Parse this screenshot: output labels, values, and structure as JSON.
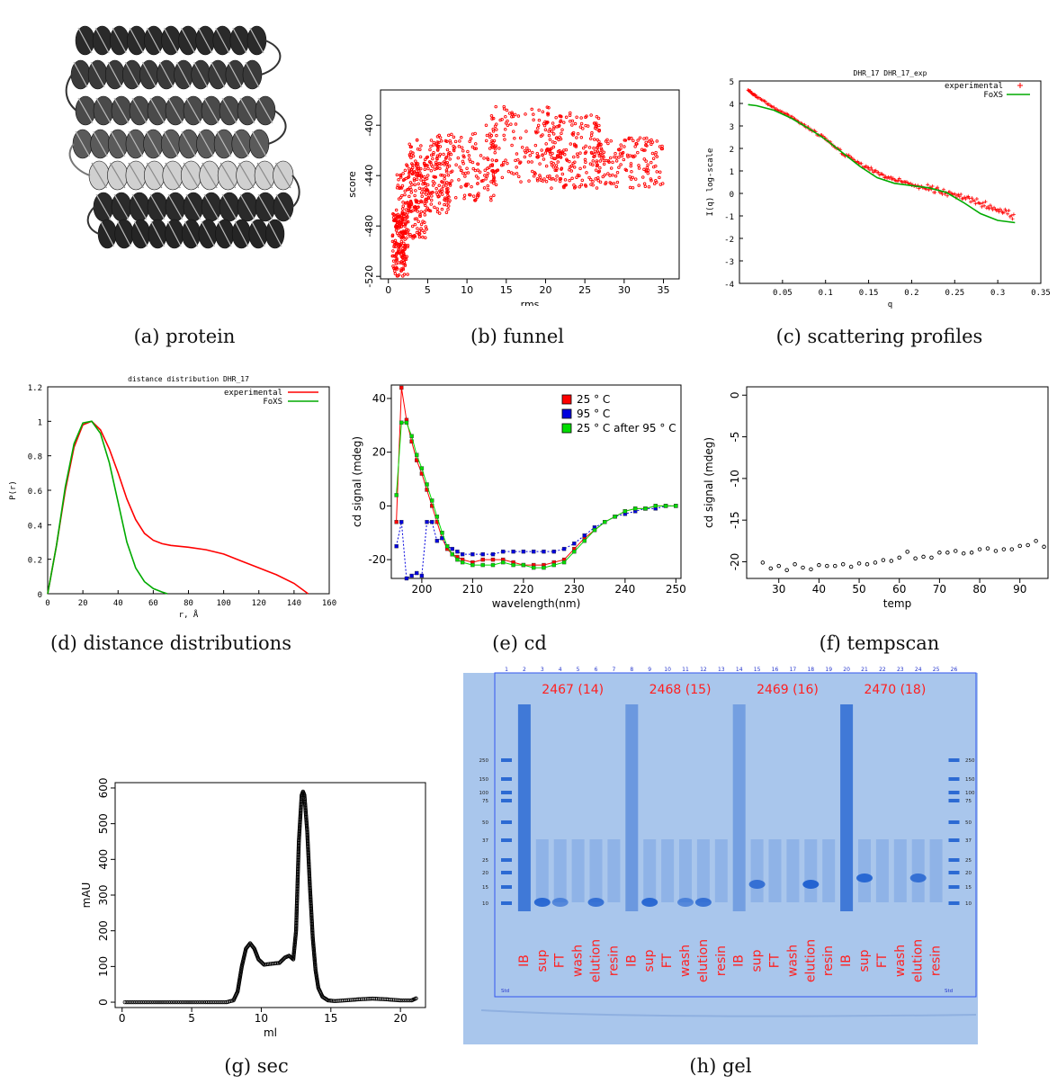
{
  "captions": {
    "a": "(a) protein",
    "b": "(b) funnel",
    "c": "(c) scattering profiles",
    "d": "(d) distance distributions",
    "e": "(e) cd",
    "f": "(f) tempscan",
    "g": "(g) sec",
    "h": "(h) gel"
  },
  "colors": {
    "red": "#ff0000",
    "green": "#00bb00",
    "blue": "#0000dd",
    "gel_bg": "#a9c6ec",
    "gel_band": "#1e5fd0",
    "gel_label": "#ff2020"
  },
  "chart_data": [
    {
      "id": "b",
      "type": "scatter",
      "xlabel": "rms",
      "ylabel": "score",
      "xlim": [
        -1,
        37
      ],
      "ylim": [
        -522,
        -372
      ],
      "xticks": [
        0,
        5,
        10,
        15,
        20,
        25,
        30,
        35
      ],
      "yticks": [
        -520,
        -480,
        -440,
        -400
      ],
      "grid": false,
      "series": [
        {
          "color": "#ff0000",
          "clusters": [
            {
              "x": [
                0.5,
                2.5
              ],
              "y": [
                -520,
                -470
              ]
            },
            {
              "x": [
                1.0,
                5.0
              ],
              "y": [
                -490,
                -430
              ]
            },
            {
              "x": [
                2.5,
                8.0
              ],
              "y": [
                -470,
                -410
              ]
            },
            {
              "x": [
                6.0,
                14.0
              ],
              "y": [
                -460,
                -405
              ]
            },
            {
              "x": [
                12.0,
                22.0
              ],
              "y": [
                -445,
                -385
              ]
            },
            {
              "x": [
                20.0,
                27.0
              ],
              "y": [
                -450,
                -390
              ]
            },
            {
              "x": [
                26.0,
                35.0
              ],
              "y": [
                -450,
                -410
              ]
            }
          ]
        }
      ]
    },
    {
      "id": "c",
      "type": "line",
      "title": "DHR_17 DHR_17_exp",
      "xlabel": "q",
      "ylabel": "I(q) log-scale",
      "xlim": [
        0,
        0.35
      ],
      "ylim": [
        -4,
        5
      ],
      "xticks": [
        0.05,
        0.1,
        0.15,
        0.2,
        0.25,
        0.3,
        0.35
      ],
      "yticks": [
        -4,
        -3,
        -2,
        -1,
        0,
        1,
        2,
        3,
        4,
        5
      ],
      "legend": "top-right",
      "series": [
        {
          "name": "experimental",
          "style": "plus",
          "color": "#ff0000",
          "x": [
            0.01,
            0.02,
            0.04,
            0.06,
            0.08,
            0.1,
            0.12,
            0.14,
            0.16,
            0.18,
            0.2,
            0.22,
            0.24,
            0.26,
            0.28,
            0.3,
            0.32
          ],
          "y": [
            4.6,
            4.3,
            3.8,
            3.4,
            2.9,
            2.4,
            1.8,
            1.3,
            0.9,
            0.6,
            0.4,
            0.2,
            0.0,
            -0.2,
            -0.4,
            -0.7,
            -1.1
          ]
        },
        {
          "name": "FoXS",
          "style": "line",
          "color": "#00aa00",
          "x": [
            0.01,
            0.02,
            0.04,
            0.06,
            0.08,
            0.1,
            0.12,
            0.14,
            0.16,
            0.18,
            0.2,
            0.22,
            0.24,
            0.26,
            0.28,
            0.3,
            0.32
          ],
          "y": [
            3.95,
            3.9,
            3.7,
            3.35,
            2.9,
            2.4,
            1.8,
            1.2,
            0.7,
            0.45,
            0.35,
            0.25,
            0.05,
            -0.4,
            -0.9,
            -1.2,
            -1.3
          ]
        }
      ]
    },
    {
      "id": "d",
      "type": "line",
      "title": "distance distribution DHR_17",
      "xlabel": "r, Å",
      "ylabel": "P(r)",
      "xlim": [
        0,
        160
      ],
      "ylim": [
        0,
        1.2
      ],
      "xticks": [
        0,
        20,
        40,
        60,
        80,
        100,
        120,
        140,
        160
      ],
      "yticks": [
        0,
        0.2,
        0.4,
        0.6,
        0.8,
        1,
        1.2
      ],
      "legend": "top-right",
      "series": [
        {
          "name": "experimental",
          "color": "#ff0000",
          "x": [
            0,
            5,
            10,
            15,
            20,
            25,
            30,
            35,
            40,
            45,
            50,
            55,
            60,
            65,
            70,
            80,
            90,
            100,
            110,
            120,
            130,
            140,
            148
          ],
          "y": [
            0,
            0.28,
            0.6,
            0.85,
            0.98,
            1.0,
            0.95,
            0.84,
            0.7,
            0.55,
            0.43,
            0.35,
            0.31,
            0.29,
            0.28,
            0.27,
            0.255,
            0.23,
            0.19,
            0.15,
            0.11,
            0.06,
            0.0
          ]
        },
        {
          "name": "FoXS",
          "color": "#00aa00",
          "x": [
            0,
            5,
            10,
            15,
            20,
            25,
            30,
            35,
            40,
            45,
            50,
            55,
            60,
            65,
            68
          ],
          "y": [
            0,
            0.28,
            0.62,
            0.87,
            0.99,
            1.0,
            0.93,
            0.76,
            0.53,
            0.3,
            0.15,
            0.07,
            0.03,
            0.01,
            0.0
          ]
        }
      ]
    },
    {
      "id": "e",
      "type": "line",
      "xlabel": "wavelength(nm)",
      "ylabel": "cd signal (mdeg)",
      "xlim": [
        194,
        251
      ],
      "ylim": [
        -27,
        45
      ],
      "xticks": [
        200,
        210,
        220,
        230,
        240,
        250
      ],
      "yticks": [
        -20,
        0,
        20,
        40
      ],
      "legend": "top-right",
      "series": [
        {
          "name": "25 ° C",
          "color": "#ff0000",
          "x": [
            195,
            196,
            197,
            198,
            199,
            200,
            201,
            202,
            203,
            204,
            205,
            206,
            207,
            208,
            210,
            212,
            214,
            216,
            218,
            220,
            222,
            224,
            226,
            228,
            230,
            232,
            234,
            236,
            238,
            240,
            242,
            244,
            246,
            248,
            250
          ],
          "y": [
            -6,
            44,
            32,
            24,
            17,
            12,
            6,
            0,
            -6,
            -12,
            -16,
            -18,
            -19,
            -20,
            -21,
            -20,
            -20,
            -20,
            -21,
            -22,
            -22,
            -22,
            -21,
            -20,
            -16,
            -12,
            -9,
            -6,
            -4,
            -2,
            -1,
            -1,
            0,
            0,
            0
          ]
        },
        {
          "name": "95 ° C",
          "color": "#0000dd",
          "x": [
            195,
            196,
            197,
            198,
            199,
            200,
            201,
            202,
            203,
            204,
            205,
            206,
            207,
            208,
            210,
            212,
            214,
            216,
            218,
            220,
            222,
            224,
            226,
            228,
            230,
            232,
            234,
            236,
            238,
            240,
            242,
            244,
            246,
            248,
            250
          ],
          "y": [
            -15,
            -6,
            -27,
            -26,
            -25,
            -26,
            -6,
            -6,
            -13,
            -12,
            -15,
            -16,
            -17,
            -18,
            -18,
            -18,
            -18,
            -17,
            -17,
            -17,
            -17,
            -17,
            -17,
            -16,
            -14,
            -11,
            -8,
            -6,
            -4,
            -3,
            -2,
            -1,
            -1,
            0,
            0
          ]
        },
        {
          "name": "25 ° C after 95 ° C",
          "color": "#00dd00",
          "x": [
            195,
            196,
            197,
            198,
            199,
            200,
            201,
            202,
            203,
            204,
            205,
            206,
            207,
            208,
            210,
            212,
            214,
            216,
            218,
            220,
            222,
            224,
            226,
            228,
            230,
            232,
            234,
            236,
            238,
            240,
            242,
            244,
            246,
            248,
            250
          ],
          "y": [
            4,
            31,
            31,
            26,
            19,
            14,
            8,
            2,
            -4,
            -10,
            -15,
            -18,
            -20,
            -21,
            -22,
            -22,
            -22,
            -21,
            -22,
            -22,
            -23,
            -23,
            -22,
            -21,
            -17,
            -13,
            -9,
            -6,
            -4,
            -2,
            -1,
            -1,
            0,
            0,
            0
          ]
        }
      ]
    },
    {
      "id": "f",
      "type": "scatter",
      "xlabel": "temp",
      "ylabel": "cd signal (mdeg)",
      "xlim": [
        22,
        97
      ],
      "ylim": [
        -22,
        1
      ],
      "xticks": [
        30,
        40,
        50,
        60,
        70,
        80,
        90
      ],
      "yticks": [
        -20,
        -15,
        -10,
        -5,
        0
      ],
      "series": [
        {
          "color": "#000000",
          "x": [
            26,
            28,
            30,
            32,
            34,
            36,
            38,
            40,
            42,
            44,
            46,
            48,
            50,
            52,
            54,
            56,
            58,
            60,
            62,
            64,
            66,
            68,
            70,
            72,
            74,
            76,
            78,
            80,
            82,
            84,
            86,
            88,
            90,
            92,
            94,
            96
          ],
          "y": [
            -20.1,
            -20.8,
            -20.5,
            -21.0,
            -20.3,
            -20.7,
            -20.9,
            -20.4,
            -20.5,
            -20.5,
            -20.3,
            -20.6,
            -20.2,
            -20.3,
            -20.1,
            -19.8,
            -19.9,
            -19.5,
            -18.8,
            -19.6,
            -19.4,
            -19.5,
            -18.9,
            -18.9,
            -18.7,
            -19.0,
            -18.9,
            -18.5,
            -18.4,
            -18.7,
            -18.5,
            -18.5,
            -18.1,
            -18.0,
            -17.5,
            -18.2
          ]
        }
      ]
    },
    {
      "id": "g",
      "type": "line",
      "xlabel": "ml",
      "ylabel": "mAU",
      "xlim": [
        -0.5,
        21.8
      ],
      "ylim": [
        -15,
        615
      ],
      "xticks": [
        0,
        5,
        10,
        15,
        20
      ],
      "yticks": [
        0,
        100,
        200,
        300,
        400,
        500,
        600
      ],
      "series": [
        {
          "color": "#000000",
          "x": [
            0.2,
            2,
            4,
            6,
            7.5,
            8.0,
            8.3,
            8.6,
            8.9,
            9.2,
            9.5,
            9.8,
            10.2,
            10.8,
            11.3,
            11.7,
            12.0,
            12.3,
            12.5,
            12.7,
            12.9,
            13.0,
            13.1,
            13.3,
            13.5,
            13.7,
            13.9,
            14.1,
            14.4,
            14.8,
            15.3,
            16,
            17,
            18,
            19,
            20,
            20.8,
            21.2
          ],
          "y": [
            0,
            0,
            0,
            0,
            0,
            5,
            30,
            100,
            150,
            165,
            150,
            120,
            105,
            108,
            110,
            125,
            130,
            120,
            200,
            450,
            580,
            590,
            580,
            480,
            320,
            180,
            90,
            40,
            15,
            5,
            3,
            5,
            8,
            10,
            8,
            5,
            5,
            12
          ]
        }
      ]
    }
  ],
  "funnel": {
    "axis_labels": {
      "x": "rms",
      "y": "score"
    }
  },
  "gel": {
    "lane_numbers": [
      "1",
      "2",
      "3",
      "4",
      "5",
      "6",
      "7",
      "8",
      "9",
      "10",
      "11",
      "12",
      "13",
      "14",
      "15",
      "16",
      "17",
      "18",
      "19",
      "20",
      "21",
      "22",
      "23",
      "24",
      "25",
      "26"
    ],
    "groups": [
      "2467 (14)",
      "2468 (15)",
      "2469 (16)",
      "2470 (18)"
    ],
    "lane_labels": [
      "IB",
      "sup",
      "FT",
      "wash",
      "elution",
      "resin",
      "IB",
      "sup",
      "FT",
      "wash",
      "elution",
      "resin",
      "IB",
      "sup",
      "FT",
      "wash",
      "elution",
      "resin",
      "IB",
      "sup",
      "FT",
      "wash",
      "elution",
      "resin"
    ],
    "marker_left": [
      "250",
      "150",
      "100",
      "75",
      "50",
      "37",
      "25",
      "20",
      "15",
      "10"
    ],
    "marker_right": [
      "250",
      "150",
      "100",
      "75",
      "50",
      "37",
      "25",
      "20",
      "15",
      "10"
    ],
    "std_left": "Std",
    "std_right": "Std"
  }
}
